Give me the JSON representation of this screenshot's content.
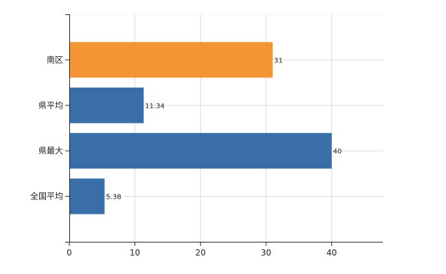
{
  "chart_data": {
    "type": "bar",
    "orientation": "horizontal",
    "categories": [
      "南区",
      "県平均",
      "県最大",
      "全国平均"
    ],
    "values": [
      31,
      11.34,
      40,
      5.38
    ],
    "value_labels": [
      "31",
      "11.34",
      "40",
      "5.38"
    ],
    "bar_colors": [
      "#f39535",
      "#3a6ea8",
      "#3a6ea8",
      "#3a6ea8"
    ],
    "xlim": [
      0,
      47.8
    ],
    "xticks": [
      0,
      10,
      20,
      30,
      40
    ],
    "xtick_labels": [
      "0",
      "10",
      "20",
      "30",
      "40"
    ],
    "grid": true,
    "grid_color": "#d9d9d9",
    "axis_color": "#222222",
    "title": "",
    "xlabel": "",
    "ylabel": ""
  }
}
